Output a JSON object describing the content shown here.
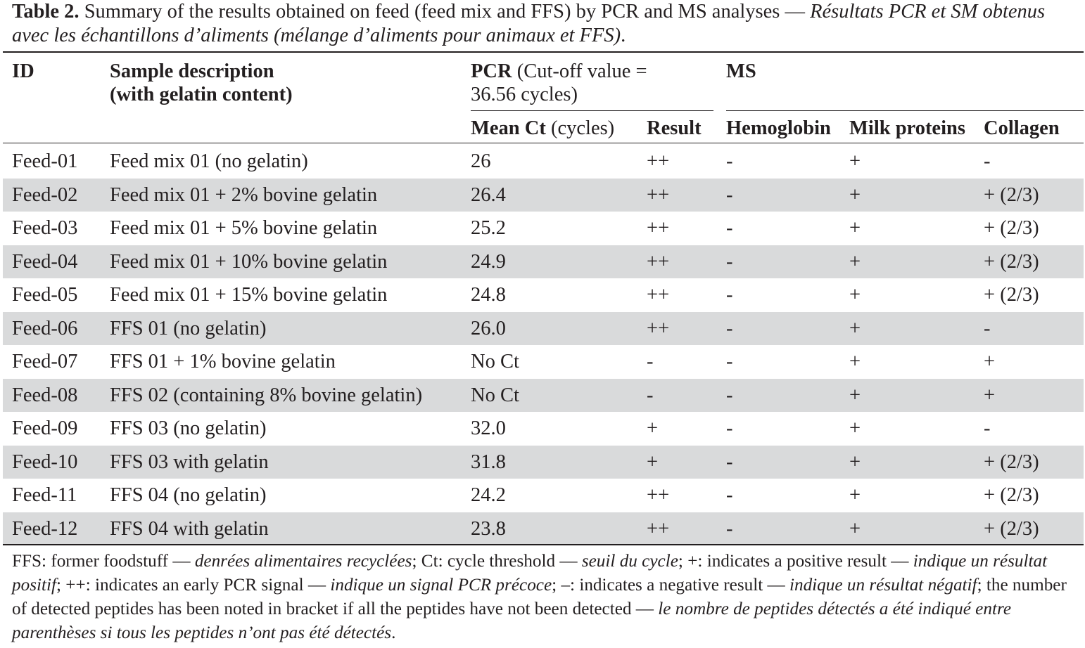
{
  "caption": {
    "label": "Table 2.",
    "text_en": " Summary of the results obtained on feed (feed mix and FFS) by PCR and MS analyses — ",
    "text_fr": "Résultats PCR et SM obtenus avec les échantillons d’aliments (mélange d’aliments pour animaux et FFS)",
    "end": "."
  },
  "header": {
    "id": "ID",
    "sample_line1": "Sample description",
    "sample_line2": "(with gelatin content)",
    "pcr_bold": "PCR",
    "pcr_rest_line1": " (Cut-off value =",
    "pcr_line2": "36.56 cycles)",
    "ms": "MS",
    "mean_ct_bold": "Mean Ct",
    "mean_ct_rest": " (cycles)",
    "result": "Result",
    "hemoglobin": "Hemoglobin",
    "milk_proteins": "Milk proteins",
    "collagen": "Collagen"
  },
  "rows": [
    {
      "id": "Feed-01",
      "sample": "Feed mix 01 (no gelatin)",
      "mean_ct": "26",
      "result": "++",
      "hemoglobin": "-",
      "milk": "+",
      "collagen": "-"
    },
    {
      "id": "Feed-02",
      "sample": "Feed mix 01 + 2% bovine gelatin",
      "mean_ct": "26.4",
      "result": "++",
      "hemoglobin": "-",
      "milk": "+",
      "collagen": "+ (2/3)"
    },
    {
      "id": "Feed-03",
      "sample": "Feed mix 01 + 5% bovine gelatin",
      "mean_ct": "25.2",
      "result": "++",
      "hemoglobin": "-",
      "milk": "+",
      "collagen": "+ (2/3)"
    },
    {
      "id": "Feed-04",
      "sample": "Feed mix 01 + 10% bovine gelatin",
      "mean_ct": "24.9",
      "result": "++",
      "hemoglobin": "-",
      "milk": "+",
      "collagen": "+ (2/3)"
    },
    {
      "id": "Feed-05",
      "sample": "Feed mix 01 + 15% bovine gelatin",
      "mean_ct": "24.8",
      "result": "++",
      "hemoglobin": "-",
      "milk": "+",
      "collagen": "+ (2/3)"
    },
    {
      "id": "Feed-06",
      "sample": "FFS 01 (no gelatin)",
      "mean_ct": "26.0",
      "result": "++",
      "hemoglobin": "-",
      "milk": "+",
      "collagen": "-"
    },
    {
      "id": "Feed-07",
      "sample": "FFS 01 + 1% bovine gelatin",
      "mean_ct": "No Ct",
      "result": "-",
      "hemoglobin": "-",
      "milk": "+",
      "collagen": "+"
    },
    {
      "id": "Feed-08",
      "sample": "FFS 02 (containing 8% bovine gelatin)",
      "mean_ct": "No Ct",
      "result": "-",
      "hemoglobin": "-",
      "milk": "+",
      "collagen": "+"
    },
    {
      "id": "Feed-09",
      "sample": "FFS 03 (no gelatin)",
      "mean_ct": "32.0",
      "result": "+",
      "hemoglobin": "-",
      "milk": "+",
      "collagen": "-"
    },
    {
      "id": "Feed-10",
      "sample": "FFS 03 with gelatin",
      "mean_ct": "31.8",
      "result": "+",
      "hemoglobin": "-",
      "milk": "+",
      "collagen": "+ (2/3)"
    },
    {
      "id": "Feed-11",
      "sample": "FFS 04 (no gelatin)",
      "mean_ct": "24.2",
      "result": "++",
      "hemoglobin": "-",
      "milk": "+",
      "collagen": "+ (2/3)"
    },
    {
      "id": "Feed-12",
      "sample": "FFS 04 with gelatin",
      "mean_ct": "23.8",
      "result": "++",
      "hemoglobin": "-",
      "milk": "+",
      "collagen": "+ (2/3)"
    }
  ],
  "footnote": {
    "p1": "FFS: former foodstuff — ",
    "p2": "denrées alimentaires recyclées",
    "p3": "; Ct: cycle threshold — ",
    "p4": "seuil du cycle",
    "p5": "; +: indicates a positive result — ",
    "p6": "indique un résultat positif",
    "p7": "; ++: indicates an early PCR signal — ",
    "p8": "indique un signal PCR précoce",
    "p9": "; –: indicates a negative result — ",
    "p10": "indique un résultat négatif",
    "p11": "; the number of detected peptides has been noted in bracket if all the peptides have not been detected — ",
    "p12": "le nombre de peptides détectés a été indiqué entre parenthèses si tous les peptides n’ont pas été détectés",
    "p13": "."
  },
  "colors": {
    "row_shade": "#d9dadb",
    "text": "#231f20"
  }
}
